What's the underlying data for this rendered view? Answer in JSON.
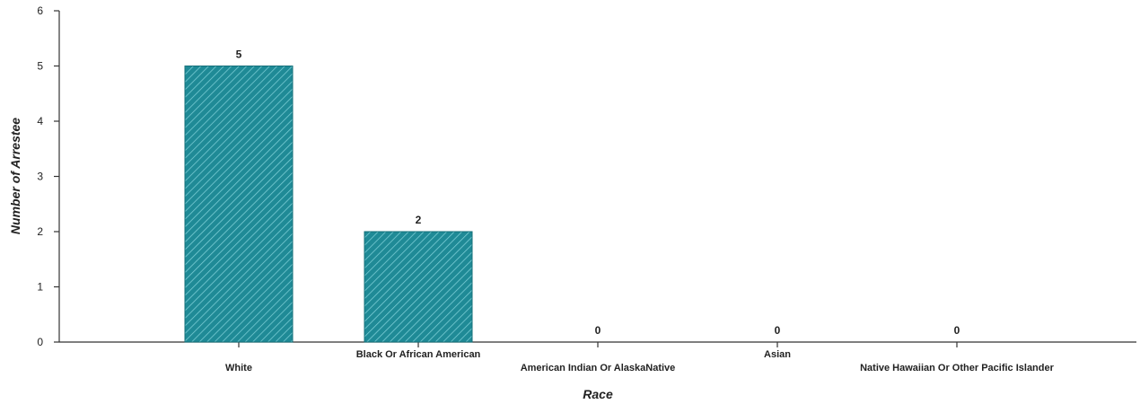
{
  "chart_data": {
    "type": "bar",
    "title": "",
    "xlabel": "Race",
    "ylabel": "Number of Arrestee",
    "categories": [
      "White",
      "Black Or African American",
      "American Indian Or AlaskaNative",
      "Asian",
      "Native Hawaiian Or Other Pacific Islander"
    ],
    "values": [
      5,
      2,
      0,
      0,
      0
    ],
    "ylim": [
      0,
      6
    ],
    "yticks": [
      "0",
      "1",
      "2",
      "3",
      "4",
      "5",
      "6"
    ],
    "grid": false,
    "legend": "none",
    "bar_color": "#1f8a96",
    "hatch_color": "#7fd0d8"
  }
}
